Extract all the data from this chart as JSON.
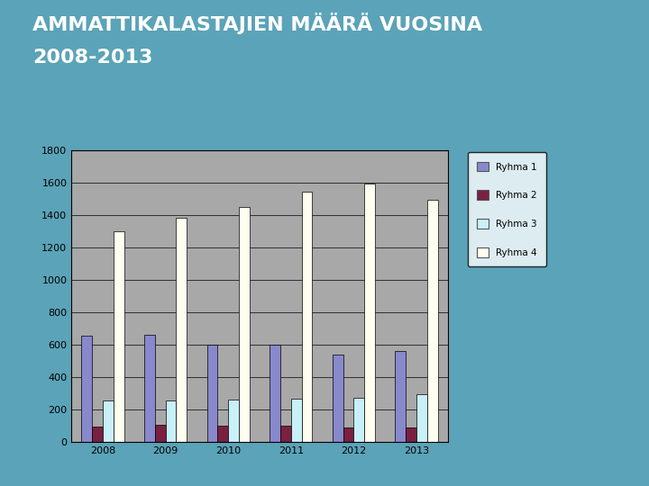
{
  "title_line1": "AMMATTIKALASTAJIEN MÄÄRÄ VUOSINA",
  "title_line2": "2008-2013",
  "years": [
    2008,
    2009,
    2010,
    2011,
    2012,
    2013
  ],
  "groups": {
    "Ryhma 1": [
      660,
      665,
      600,
      600,
      540,
      565
    ],
    "Ryhma 2": [
      95,
      110,
      100,
      100,
      90,
      90
    ],
    "Ryhma 3": [
      260,
      260,
      265,
      270,
      275,
      295
    ],
    "Ryhma 4": [
      1305,
      1385,
      1450,
      1545,
      1595,
      1495
    ]
  },
  "colors": {
    "Ryhma 1": "#8888cc",
    "Ryhma 2": "#7a2040",
    "Ryhma 3": "#c8f0f8",
    "Ryhma 4": "#fffff0"
  },
  "ylim": [
    0,
    1800
  ],
  "yticks": [
    0,
    200,
    400,
    600,
    800,
    1000,
    1200,
    1400,
    1600,
    1800
  ],
  "background_outer": "#5ba3b8",
  "background_plot": "#a8a8a8",
  "background_white_box": "#ffffff",
  "bar_width": 0.17,
  "title_color": "#ffffff",
  "title_fontsize": 16,
  "grid_color": "#000000",
  "legend_labels": [
    "Ryhma 1",
    "Ryhma 2",
    "Ryhma 3",
    "Ryhma 4"
  ]
}
